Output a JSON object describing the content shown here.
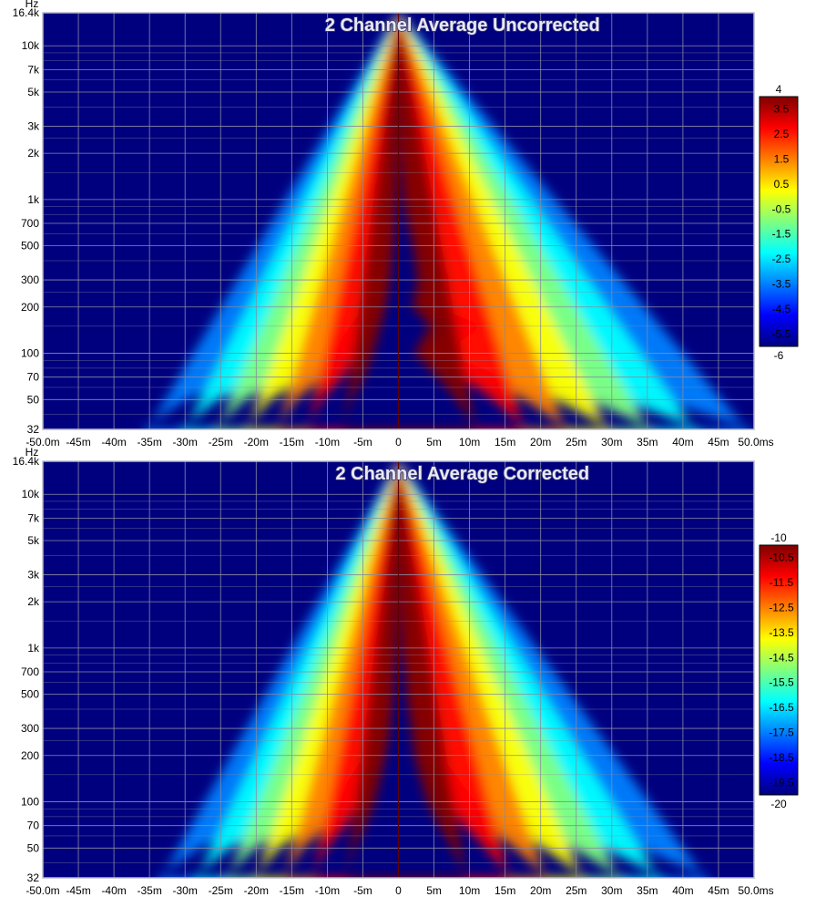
{
  "chart_data": [
    {
      "type": "heatmap",
      "title": "2 Channel Average Uncorrected",
      "y_unit": "Hz",
      "x_unit": "ms",
      "yscale": "log",
      "xlim": [
        -50,
        50
      ],
      "ylim": [
        32,
        16400
      ],
      "x_ticks": [
        -50,
        -45,
        -40,
        -35,
        -30,
        -25,
        -20,
        -15,
        -10,
        -5,
        0,
        5,
        10,
        15,
        20,
        25,
        30,
        35,
        40,
        45,
        50
      ],
      "x_tick_labels": [
        "-50.0m",
        "-45m",
        "-40m",
        "-35m",
        "-30m",
        "-25m",
        "-20m",
        "-15m",
        "-10m",
        "-5m",
        "0",
        "5m",
        "10m",
        "15m",
        "20m",
        "25m",
        "30m",
        "35m",
        "40m",
        "45m",
        "50.0ms"
      ],
      "y_ticks": [
        16400,
        10000,
        7000,
        5000,
        3000,
        2000,
        1000,
        700,
        500,
        300,
        200,
        100,
        70,
        50,
        32
      ],
      "y_tick_labels": [
        "16.4k",
        "10k",
        "7k",
        "5k",
        "3k",
        "2k",
        "1k",
        "700",
        "500",
        "300",
        "200",
        "100",
        "70",
        "50",
        "32"
      ],
      "grid": true,
      "colorbar": {
        "min": -6,
        "max": 4,
        "min_label": "-6",
        "max_label": "4",
        "tick_labels": [
          "3.5",
          "2.5",
          "1.5",
          "0.5",
          "-0.5",
          "-1.5",
          "-2.5",
          "-3.5",
          "-4.5",
          "-5.5"
        ]
      },
      "colormap_colors": [
        "#00007f",
        "#0000ff",
        "#007fff",
        "#00ffff",
        "#7fff7f",
        "#ffff00",
        "#ff7f00",
        "#ff0000",
        "#7f0000"
      ]
    },
    {
      "type": "heatmap",
      "title": "2 Channel Average Corrected",
      "y_unit": "Hz",
      "x_unit": "ms",
      "yscale": "log",
      "xlim": [
        -50,
        50
      ],
      "ylim": [
        32,
        16400
      ],
      "x_ticks": [
        -50,
        -45,
        -40,
        -35,
        -30,
        -25,
        -20,
        -15,
        -10,
        -5,
        0,
        5,
        10,
        15,
        20,
        25,
        30,
        35,
        40,
        45,
        50
      ],
      "x_tick_labels": [
        "-50.0m",
        "-45m",
        "-40m",
        "-35m",
        "-30m",
        "-25m",
        "-20m",
        "-15m",
        "-10m",
        "-5m",
        "0",
        "5m",
        "10m",
        "15m",
        "20m",
        "25m",
        "30m",
        "35m",
        "40m",
        "45m",
        "50.0ms"
      ],
      "y_ticks": [
        16400,
        10000,
        7000,
        5000,
        3000,
        2000,
        1000,
        700,
        500,
        300,
        200,
        100,
        70,
        50,
        32
      ],
      "y_tick_labels": [
        "16.4k",
        "10k",
        "7k",
        "5k",
        "3k",
        "2k",
        "1k",
        "700",
        "500",
        "300",
        "200",
        "100",
        "70",
        "50",
        "32"
      ],
      "grid": true,
      "colorbar": {
        "min": -20,
        "max": -10,
        "min_label": "-20",
        "max_label": "-10",
        "tick_labels": [
          "-10.5",
          "-11.5",
          "-12.5",
          "-13.5",
          "-14.5",
          "-15.5",
          "-16.5",
          "-17.5",
          "-18.5",
          "-19.5"
        ]
      },
      "colormap_colors": [
        "#00007f",
        "#0000ff",
        "#007fff",
        "#00ffff",
        "#7fff7f",
        "#ffff00",
        "#ff7f00",
        "#ff0000",
        "#7f0000"
      ]
    }
  ]
}
